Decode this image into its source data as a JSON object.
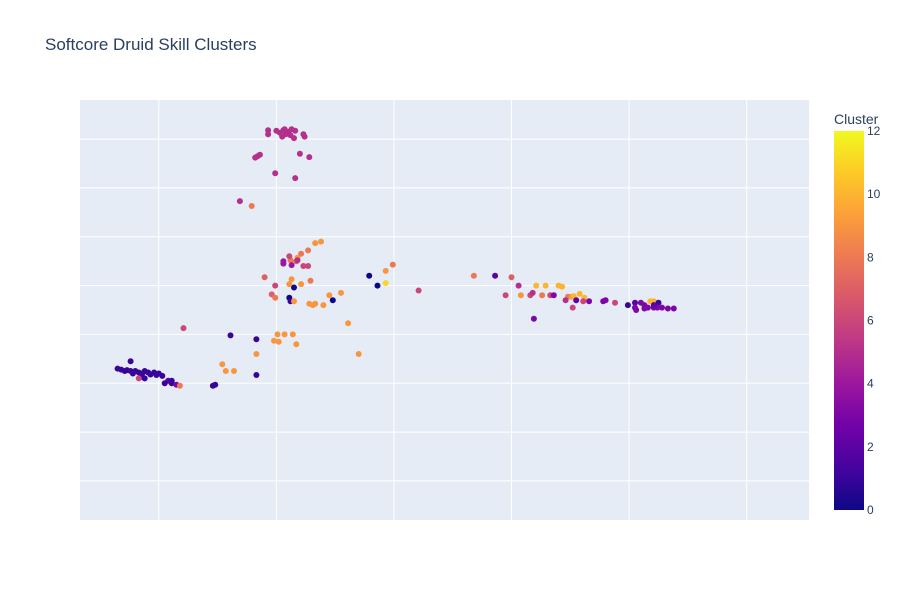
{
  "chart_data": {
    "type": "scatter",
    "title": "Softcore Druid Skill Clusters",
    "xlabel": "",
    "ylabel": "",
    "xlim": [
      -2.0,
      4.2
    ],
    "ylim": [
      -3.3,
      5.3
    ],
    "x_gridlines": [
      -1.33,
      -0.33,
      0.67,
      1.67,
      2.67,
      3.67
    ],
    "y_gridlines": [
      -2.5,
      -1.5,
      -0.5,
      0.5,
      1.5,
      2.5,
      3.5,
      4.5
    ],
    "colorbar": {
      "title": "Cluster",
      "min": 0,
      "max": 12,
      "ticks": [
        0,
        2,
        4,
        6,
        8,
        10,
        12
      ],
      "colorscale": [
        "#0d0887",
        "#46039f",
        "#7201a8",
        "#9c179e",
        "#bd3786",
        "#d8576b",
        "#ed7953",
        "#fb9f3a",
        "#fdca26",
        "#f0f921"
      ]
    },
    "points": [
      {
        "x": -0.33,
        "y": 4.67,
        "c": 5
      },
      {
        "x": -0.3,
        "y": 4.63,
        "c": 5
      },
      {
        "x": -0.27,
        "y": 4.68,
        "c": 5
      },
      {
        "x": -0.25,
        "y": 4.6,
        "c": 5
      },
      {
        "x": -0.28,
        "y": 4.55,
        "c": 5
      },
      {
        "x": -0.23,
        "y": 4.65,
        "c": 5
      },
      {
        "x": -0.2,
        "y": 4.7,
        "c": 5
      },
      {
        "x": -0.21,
        "y": 4.58,
        "c": 5
      },
      {
        "x": -0.26,
        "y": 4.7,
        "c": 5
      },
      {
        "x": -0.17,
        "y": 4.67,
        "c": 5
      },
      {
        "x": -0.18,
        "y": 4.52,
        "c": 5
      },
      {
        "x": -0.1,
        "y": 4.6,
        "c": 5
      },
      {
        "x": -0.09,
        "y": 4.55,
        "c": 5
      },
      {
        "x": -0.4,
        "y": 4.68,
        "c": 5
      },
      {
        "x": -0.4,
        "y": 4.6,
        "c": 5
      },
      {
        "x": -0.13,
        "y": 4.2,
        "c": 5
      },
      {
        "x": -0.05,
        "y": 4.13,
        "c": 5
      },
      {
        "x": -0.49,
        "y": 4.15,
        "c": 5
      },
      {
        "x": -0.47,
        "y": 4.18,
        "c": 5
      },
      {
        "x": -0.51,
        "y": 4.12,
        "c": 5
      },
      {
        "x": -0.34,
        "y": 3.8,
        "c": 5
      },
      {
        "x": -0.17,
        "y": 3.7,
        "c": 5
      },
      {
        "x": -0.64,
        "y": 3.23,
        "c": 5
      },
      {
        "x": -0.54,
        "y": 3.13,
        "c": 8
      },
      {
        "x": 0.05,
        "y": 2.4,
        "c": 9
      },
      {
        "x": 0.0,
        "y": 2.37,
        "c": 9
      },
      {
        "x": -0.06,
        "y": 2.22,
        "c": 8
      },
      {
        "x": -0.12,
        "y": 2.15,
        "c": 8
      },
      {
        "x": -0.15,
        "y": 2.07,
        "c": 9
      },
      {
        "x": -0.16,
        "y": 2.0,
        "c": 7
      },
      {
        "x": -0.21,
        "y": 2.02,
        "c": 8
      },
      {
        "x": -0.27,
        "y": 2.0,
        "c": 4
      },
      {
        "x": -0.27,
        "y": 1.95,
        "c": 4
      },
      {
        "x": -0.2,
        "y": 1.92,
        "c": 4
      },
      {
        "x": -0.15,
        "y": 2.02,
        "c": 5
      },
      {
        "x": -0.1,
        "y": 1.9,
        "c": 6
      },
      {
        "x": -0.06,
        "y": 1.9,
        "c": 6
      },
      {
        "x": -0.22,
        "y": 2.1,
        "c": 6
      },
      {
        "x": -0.43,
        "y": 1.67,
        "c": 7
      },
      {
        "x": -0.04,
        "y": 1.6,
        "c": 8
      },
      {
        "x": -0.2,
        "y": 1.63,
        "c": 9
      },
      {
        "x": -0.34,
        "y": 1.5,
        "c": 6
      },
      {
        "x": -0.18,
        "y": 1.46,
        "c": 0
      },
      {
        "x": -0.22,
        "y": 1.53,
        "c": 9
      },
      {
        "x": -0.37,
        "y": 1.32,
        "c": 7
      },
      {
        "x": -0.34,
        "y": 1.25,
        "c": 8
      },
      {
        "x": -0.22,
        "y": 1.25,
        "c": 0
      },
      {
        "x": -0.21,
        "y": 1.18,
        "c": 1
      },
      {
        "x": -0.18,
        "y": 1.18,
        "c": 9
      },
      {
        "x": 0.12,
        "y": 1.3,
        "c": 9
      },
      {
        "x": 0.22,
        "y": 1.35,
        "c": 9
      },
      {
        "x": -0.12,
        "y": 1.53,
        "c": 9
      },
      {
        "x": -0.05,
        "y": 1.13,
        "c": 9
      },
      {
        "x": -0.02,
        "y": 1.1,
        "c": 9
      },
      {
        "x": 0.07,
        "y": 1.1,
        "c": 9
      },
      {
        "x": 0.0,
        "y": 1.13,
        "c": 9
      },
      {
        "x": 0.28,
        "y": 0.73,
        "c": 9
      },
      {
        "x": -0.19,
        "y": 0.5,
        "c": 9
      },
      {
        "x": -0.26,
        "y": 0.5,
        "c": 9
      },
      {
        "x": -0.31,
        "y": 0.35,
        "c": 9
      },
      {
        "x": -0.35,
        "y": 0.37,
        "c": 9
      },
      {
        "x": -0.16,
        "y": 0.3,
        "c": 9
      },
      {
        "x": -0.32,
        "y": 0.5,
        "c": 9
      },
      {
        "x": -0.5,
        "y": 0.1,
        "c": 9
      },
      {
        "x": -0.76,
        "y": -0.25,
        "c": 9
      },
      {
        "x": 0.37,
        "y": 0.1,
        "c": 9
      },
      {
        "x": -0.5,
        "y": 0.4,
        "c": 1
      },
      {
        "x": -0.72,
        "y": 0.48,
        "c": 1
      },
      {
        "x": -0.69,
        "y": -0.25,
        "c": 9
      },
      {
        "x": -0.5,
        "y": -0.33,
        "c": 1
      },
      {
        "x": -0.79,
        "y": -0.11,
        "c": 9
      },
      {
        "x": -1.12,
        "y": 0.63,
        "c": 6
      },
      {
        "x": 0.15,
        "y": 1.2,
        "c": 0
      },
      {
        "x": 0.46,
        "y": 1.7,
        "c": 0
      },
      {
        "x": 0.6,
        "y": 1.8,
        "c": 9
      },
      {
        "x": 0.53,
        "y": 1.5,
        "c": 0
      },
      {
        "x": 0.66,
        "y": 1.93,
        "c": 8
      },
      {
        "x": 0.6,
        "y": 1.55,
        "c": 11
      },
      {
        "x": 0.88,
        "y": 1.4,
        "c": 6
      },
      {
        "x": 1.35,
        "y": 1.7,
        "c": 8
      },
      {
        "x": 1.53,
        "y": 1.7,
        "c": 2
      },
      {
        "x": 1.67,
        "y": 1.67,
        "c": 7
      },
      {
        "x": 1.73,
        "y": 1.5,
        "c": 5
      },
      {
        "x": 1.75,
        "y": 1.3,
        "c": 9
      },
      {
        "x": 1.62,
        "y": 1.3,
        "c": 6
      },
      {
        "x": 1.88,
        "y": 1.5,
        "c": 10
      },
      {
        "x": 1.96,
        "y": 1.5,
        "c": 10
      },
      {
        "x": 2.07,
        "y": 1.5,
        "c": 10
      },
      {
        "x": 2.1,
        "y": 1.48,
        "c": 10
      },
      {
        "x": 1.83,
        "y": 1.3,
        "c": 6
      },
      {
        "x": 1.85,
        "y": 1.35,
        "c": 5
      },
      {
        "x": 1.93,
        "y": 1.3,
        "c": 8
      },
      {
        "x": 2.0,
        "y": 1.3,
        "c": 6
      },
      {
        "x": 2.03,
        "y": 1.3,
        "c": 3
      },
      {
        "x": 2.15,
        "y": 1.27,
        "c": 8
      },
      {
        "x": 2.18,
        "y": 1.27,
        "c": 9
      },
      {
        "x": 2.2,
        "y": 1.28,
        "c": 10
      },
      {
        "x": 2.25,
        "y": 1.33,
        "c": 10
      },
      {
        "x": 2.29,
        "y": 1.25,
        "c": 10
      },
      {
        "x": 2.13,
        "y": 1.2,
        "c": 5
      },
      {
        "x": 2.22,
        "y": 1.2,
        "c": 2
      },
      {
        "x": 2.28,
        "y": 1.18,
        "c": 6
      },
      {
        "x": 2.33,
        "y": 1.18,
        "c": 3
      },
      {
        "x": 2.45,
        "y": 1.18,
        "c": 3
      },
      {
        "x": 2.47,
        "y": 1.2,
        "c": 3
      },
      {
        "x": 2.55,
        "y": 1.15,
        "c": 6
      },
      {
        "x": 2.19,
        "y": 1.05,
        "c": 6
      },
      {
        "x": 2.66,
        "y": 1.1,
        "c": 1
      },
      {
        "x": 1.86,
        "y": 0.82,
        "c": 3
      },
      {
        "x": 2.72,
        "y": 1.15,
        "c": 2
      },
      {
        "x": 2.77,
        "y": 1.15,
        "c": 3
      },
      {
        "x": 2.8,
        "y": 1.1,
        "c": 3
      },
      {
        "x": 2.85,
        "y": 1.18,
        "c": 10
      },
      {
        "x": 2.88,
        "y": 1.18,
        "c": 10
      },
      {
        "x": 2.92,
        "y": 1.15,
        "c": 1
      },
      {
        "x": 2.72,
        "y": 1.05,
        "c": 3
      },
      {
        "x": 2.73,
        "y": 1.0,
        "c": 3
      },
      {
        "x": 2.8,
        "y": 1.03,
        "c": 3
      },
      {
        "x": 2.83,
        "y": 1.05,
        "c": 3
      },
      {
        "x": 2.88,
        "y": 1.05,
        "c": 3
      },
      {
        "x": 2.91,
        "y": 1.05,
        "c": 3
      },
      {
        "x": 2.95,
        "y": 1.05,
        "c": 3
      },
      {
        "x": 3.0,
        "y": 1.03,
        "c": 3
      },
      {
        "x": 3.05,
        "y": 1.03,
        "c": 3
      },
      {
        "x": 2.88,
        "y": 1.1,
        "c": 2
      },
      {
        "x": -1.68,
        "y": -0.2,
        "c": 1
      },
      {
        "x": -1.65,
        "y": -0.22,
        "c": 1
      },
      {
        "x": -1.62,
        "y": -0.25,
        "c": 1
      },
      {
        "x": -1.6,
        "y": -0.23,
        "c": 1
      },
      {
        "x": -1.57,
        "y": -0.25,
        "c": 1
      },
      {
        "x": -1.55,
        "y": -0.3,
        "c": 1
      },
      {
        "x": -1.53,
        "y": -0.25,
        "c": 1
      },
      {
        "x": -1.5,
        "y": -0.28,
        "c": 1
      },
      {
        "x": -1.47,
        "y": -0.3,
        "c": 1
      },
      {
        "x": -1.45,
        "y": -0.25,
        "c": 1
      },
      {
        "x": -1.42,
        "y": -0.28,
        "c": 1
      },
      {
        "x": -1.4,
        "y": -0.32,
        "c": 1
      },
      {
        "x": -1.37,
        "y": -0.28,
        "c": 1
      },
      {
        "x": -1.35,
        "y": -0.33,
        "c": 1
      },
      {
        "x": -1.33,
        "y": -0.3,
        "c": 1
      },
      {
        "x": -1.3,
        "y": -0.35,
        "c": 1
      },
      {
        "x": -1.48,
        "y": -0.37,
        "c": 1
      },
      {
        "x": -1.45,
        "y": -0.4,
        "c": 1
      },
      {
        "x": -1.5,
        "y": -0.4,
        "c": 6
      },
      {
        "x": -1.57,
        "y": -0.05,
        "c": 1
      },
      {
        "x": -1.25,
        "y": -0.45,
        "c": 2
      },
      {
        "x": -1.22,
        "y": -0.5,
        "c": 1
      },
      {
        "x": -1.18,
        "y": -0.53,
        "c": 3
      },
      {
        "x": -1.15,
        "y": -0.55,
        "c": 8
      },
      {
        "x": -1.28,
        "y": -0.5,
        "c": 1
      },
      {
        "x": -0.87,
        "y": -0.55,
        "c": 1
      },
      {
        "x": -0.85,
        "y": -0.53,
        "c": 1
      },
      {
        "x": -1.22,
        "y": -0.45,
        "c": 1
      }
    ]
  }
}
